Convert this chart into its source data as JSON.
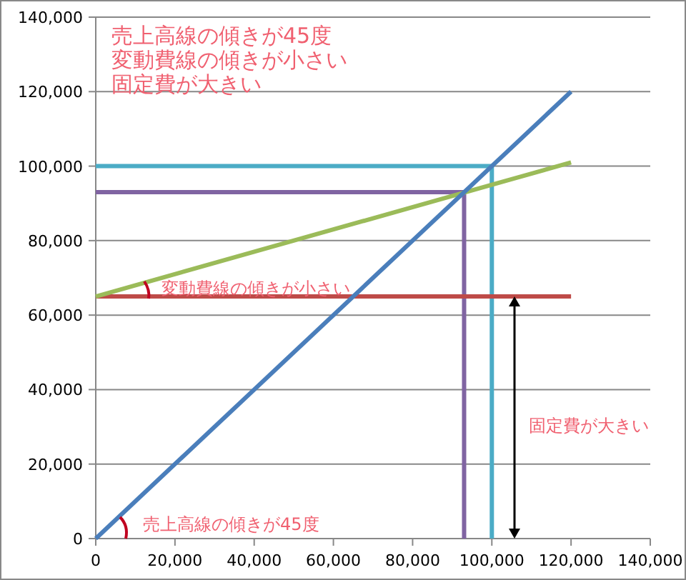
{
  "chart_data": {
    "type": "line",
    "xlim": [
      0,
      140000
    ],
    "ylim": [
      0,
      140000
    ],
    "xticks": [
      {
        "value": 0,
        "label": "0"
      },
      {
        "value": 20000,
        "label": "20,000"
      },
      {
        "value": 40000,
        "label": "40,000"
      },
      {
        "value": 60000,
        "label": "60,000"
      },
      {
        "value": 80000,
        "label": "80,000"
      },
      {
        "value": 100000,
        "label": "100,000"
      },
      {
        "value": 120000,
        "label": "120,000"
      },
      {
        "value": 140000,
        "label": "140,000"
      }
    ],
    "yticks": [
      {
        "value": 0,
        "label": "0"
      },
      {
        "value": 20000,
        "label": "20,000"
      },
      {
        "value": 40000,
        "label": "40,000"
      },
      {
        "value": 60000,
        "label": "60,000"
      },
      {
        "value": 80000,
        "label": "80,000"
      },
      {
        "value": 100000,
        "label": "100,000"
      },
      {
        "value": 120000,
        "label": "120,000"
      },
      {
        "value": 140000,
        "label": "140,000"
      }
    ],
    "grid": "y",
    "marker": "none",
    "line_style": "solid",
    "series": [
      {
        "color": "#4bacc6",
        "x": [
          0,
          100000,
          100000
        ],
        "values": [
          100000,
          100000,
          0
        ]
      },
      {
        "color": "#8064a2",
        "x": [
          0,
          93000,
          93000
        ],
        "values": [
          93000,
          93000,
          0
        ]
      },
      {
        "color": "#be4b48",
        "x": [
          0,
          120000
        ],
        "values": [
          65000,
          65000
        ]
      },
      {
        "color": "#9bbb59",
        "x": [
          0,
          120000
        ],
        "values": [
          65000,
          101000
        ]
      },
      {
        "color": "#4a7ebb",
        "x": [
          0,
          120000
        ],
        "values": [
          0,
          120000
        ]
      }
    ],
    "annotations": [
      "売上高線の傾きが45度",
      "変動費線の傾きが小さい",
      "固定費が大きい",
      "変動費線の傾きが小さい",
      "固定費が大きい",
      "売上高線の傾きが45度"
    ]
  }
}
